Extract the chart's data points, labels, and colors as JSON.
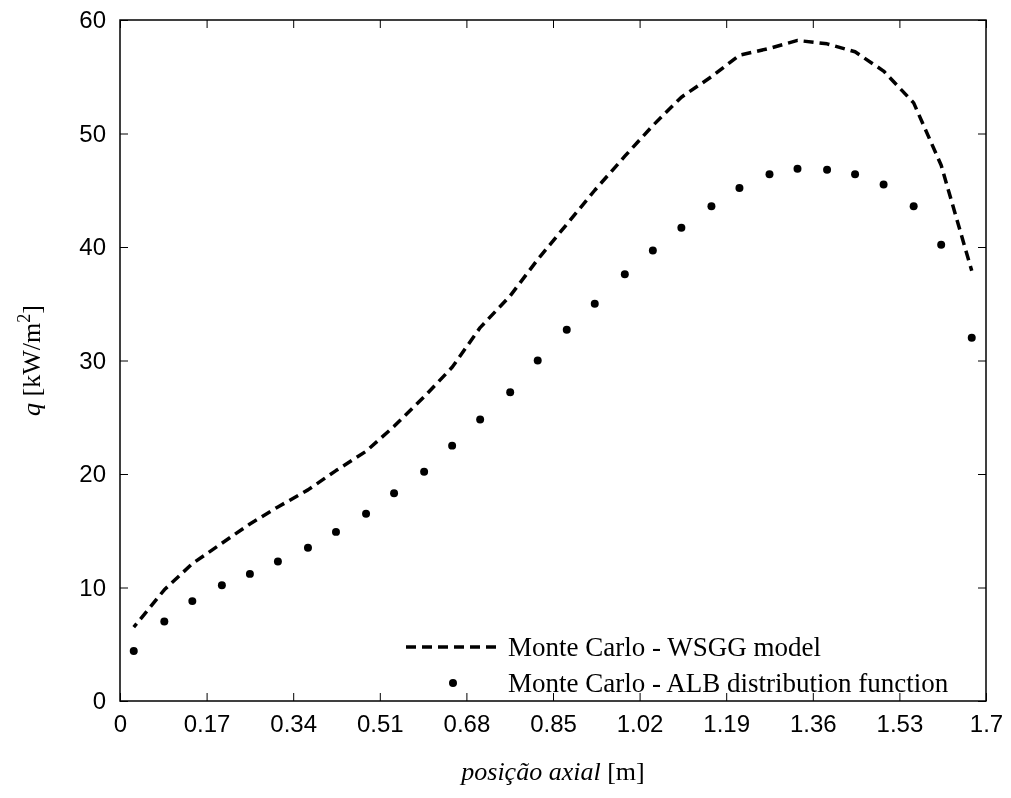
{
  "chart_data": {
    "type": "line",
    "xlabel": "posição axial [m]",
    "ylabel": "q [kW/m$^{2}$]",
    "xlim": [
      0,
      1.7
    ],
    "xticks": [
      0,
      0.17,
      0.34,
      0.51,
      0.68,
      0.85,
      1.02,
      1.19,
      1.36,
      1.53,
      1.7
    ],
    "ylim": [
      0,
      60
    ],
    "yticks": [
      0,
      10,
      20,
      30,
      40,
      50,
      60
    ],
    "grid": false,
    "legend": "bottom right",
    "series": [
      {
        "name": "Monte Carlo - WSGG model",
        "color": "#000000",
        "line_style": "dashed",
        "marker": "none",
        "x": [
          0.027,
          0.087,
          0.142,
          0.2,
          0.255,
          0.31,
          0.369,
          0.424,
          0.483,
          0.538,
          0.597,
          0.652,
          0.707,
          0.766,
          0.82,
          0.877,
          0.932,
          0.991,
          1.046,
          1.102,
          1.161,
          1.216,
          1.275,
          1.33,
          1.388,
          1.443,
          1.499,
          1.558,
          1.612,
          1.672
        ],
        "values": [
          6.5,
          9.8,
          12.1,
          13.9,
          15.6,
          17.1,
          18.6,
          20.3,
          22.0,
          24.2,
          26.8,
          29.4,
          32.9,
          35.7,
          38.9,
          42.0,
          45.0,
          48.0,
          50.7,
          53.2,
          55.0,
          56.9,
          57.5,
          58.2,
          57.9,
          57.2,
          55.5,
          52.7,
          47.2,
          37.9
        ]
      },
      {
        "name": "Monte Carlo - ALB distribution function",
        "color": "#000000",
        "type": "scatter",
        "marker": "circle",
        "x": [
          0.027,
          0.087,
          0.142,
          0.2,
          0.255,
          0.31,
          0.369,
          0.424,
          0.483,
          0.538,
          0.597,
          0.652,
          0.707,
          0.766,
          0.82,
          0.877,
          0.932,
          0.991,
          1.046,
          1.102,
          1.161,
          1.216,
          1.275,
          1.33,
          1.388,
          1.443,
          1.499,
          1.558,
          1.612,
          1.672
        ],
        "values": [
          4.4,
          7.0,
          8.8,
          10.2,
          11.2,
          12.3,
          13.5,
          14.9,
          16.5,
          18.3,
          20.2,
          22.5,
          24.8,
          27.2,
          30.0,
          32.7,
          35.0,
          37.6,
          39.7,
          41.7,
          43.6,
          45.2,
          46.4,
          46.9,
          46.8,
          46.4,
          45.5,
          43.6,
          40.2,
          32.0
        ]
      }
    ]
  }
}
